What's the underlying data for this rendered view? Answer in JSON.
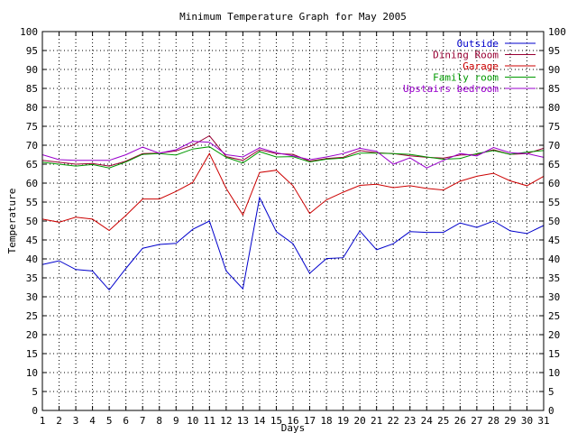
{
  "chart_data": {
    "type": "line",
    "title": "Minimum Temperature Graph for May 2005",
    "xlabel": "Days",
    "ylabel": "Temperature",
    "xlim": [
      1,
      31
    ],
    "ylim": [
      0,
      100
    ],
    "y_tick_step": 5,
    "grid": true,
    "legend_position": "top-right",
    "x": [
      1,
      2,
      3,
      4,
      5,
      6,
      7,
      8,
      9,
      10,
      11,
      12,
      13,
      14,
      15,
      16,
      17,
      18,
      19,
      20,
      21,
      22,
      23,
      24,
      25,
      26,
      27,
      28,
      29,
      30,
      31
    ],
    "series": [
      {
        "name": "Outside",
        "color": "#0000cc",
        "values": [
          38.5,
          39.5,
          37.2,
          36.8,
          31.8,
          37.5,
          42.8,
          43.8,
          44.1,
          47.8,
          50.0,
          36.8,
          32.1,
          56.2,
          47.2,
          44.0,
          36.2,
          40.1,
          40.3,
          47.4,
          42.4,
          44.0,
          47.2,
          47.0,
          47.0,
          49.5,
          48.3,
          50.0,
          47.4,
          46.7,
          48.8
        ]
      },
      {
        "name": "Dining Room",
        "color": "#990033",
        "values": [
          66.0,
          65.5,
          65.0,
          65.2,
          64.5,
          65.8,
          67.8,
          67.9,
          68.5,
          70.0,
          72.5,
          67.0,
          66.0,
          68.8,
          67.8,
          67.6,
          65.8,
          66.5,
          66.8,
          68.6,
          68.0,
          67.8,
          67.2,
          66.8,
          66.6,
          67.4,
          67.6,
          68.8,
          67.6,
          67.8,
          69.2
        ]
      },
      {
        "name": "Garage",
        "color": "#cc0000",
        "values": [
          50.5,
          49.7,
          51.0,
          50.5,
          47.5,
          51.5,
          55.8,
          55.8,
          57.8,
          60.2,
          67.8,
          58.6,
          51.6,
          62.8,
          63.4,
          59.3,
          52.0,
          55.6,
          57.6,
          59.4,
          59.7,
          58.8,
          59.3,
          58.6,
          58.2,
          60.5,
          61.8,
          62.6,
          60.6,
          59.3,
          61.8
        ]
      },
      {
        "name": "Family room",
        "color": "#009900",
        "values": [
          65.5,
          65.0,
          64.5,
          64.9,
          64.0,
          65.6,
          67.6,
          67.8,
          67.4,
          69.0,
          69.6,
          66.8,
          65.3,
          68.3,
          66.9,
          67.0,
          65.6,
          66.3,
          66.6,
          67.9,
          67.9,
          67.8,
          67.6,
          66.9,
          66.3,
          66.5,
          67.8,
          68.6,
          67.6,
          68.2,
          68.6
        ]
      },
      {
        "name": "Upstairs bedroom",
        "color": "#9900cc",
        "values": [
          67.5,
          66.2,
          66.0,
          66.0,
          66.0,
          67.5,
          69.5,
          67.9,
          68.8,
          71.0,
          70.8,
          67.5,
          66.9,
          69.3,
          68.0,
          67.2,
          66.2,
          66.9,
          67.8,
          69.2,
          68.4,
          65.0,
          66.7,
          64.0,
          66.0,
          67.8,
          67.2,
          69.4,
          68.0,
          67.8,
          66.8
        ]
      }
    ]
  }
}
